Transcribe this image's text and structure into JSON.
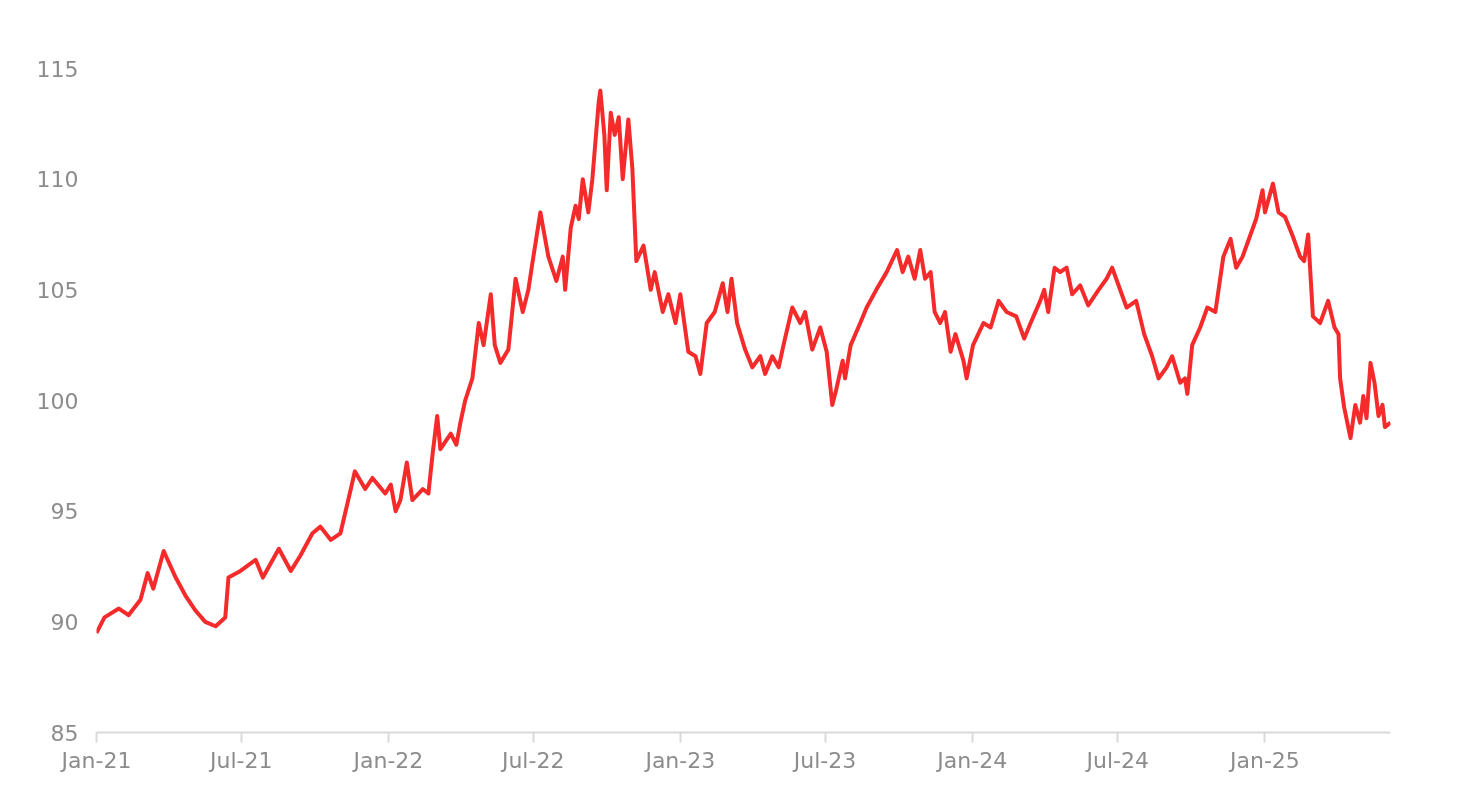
{
  "chart_data": {
    "type": "line",
    "x": [
      "2021-01-01",
      "2021-01-11",
      "2021-01-29",
      "2021-02-10",
      "2021-02-25",
      "2021-03-06",
      "2021-03-13",
      "2021-03-26",
      "2021-04-10",
      "2021-04-22",
      "2021-05-05",
      "2021-05-17",
      "2021-05-30",
      "2021-06-11",
      "2021-06-15",
      "2021-06-30",
      "2021-07-19",
      "2021-07-28",
      "2021-08-17",
      "2021-09-01",
      "2021-09-13",
      "2021-09-28",
      "2021-10-08",
      "2021-10-21",
      "2021-11-02",
      "2021-11-15",
      "2021-11-20",
      "2021-12-03",
      "2021-12-12",
      "2021-12-28",
      "2022-01-04",
      "2022-01-10",
      "2022-01-16",
      "2022-01-24",
      "2022-01-31",
      "2022-02-13",
      "2022-02-20",
      "2022-02-25",
      "2022-03-03",
      "2022-03-07",
      "2022-03-20",
      "2022-03-27",
      "2022-04-01",
      "2022-04-07",
      "2022-04-16",
      "2022-04-24",
      "2022-04-30",
      "2022-05-09",
      "2022-05-14",
      "2022-05-21",
      "2022-05-31",
      "2022-06-09",
      "2022-06-18",
      "2022-06-25",
      "2022-06-30",
      "2022-07-10",
      "2022-07-20",
      "2022-07-30",
      "2022-08-07",
      "2022-08-10",
      "2022-08-17",
      "2022-08-23",
      "2022-08-27",
      "2022-09-01",
      "2022-09-08",
      "2022-09-13",
      "2022-09-21",
      "2022-09-23",
      "2022-09-28",
      "2022-10-01",
      "2022-10-06",
      "2022-10-11",
      "2022-10-16",
      "2022-10-21",
      "2022-10-28",
      "2022-11-02",
      "2022-11-07",
      "2022-11-16",
      "2022-11-25",
      "2022-11-30",
      "2022-12-10",
      "2022-12-17",
      "2022-12-26",
      "2023-01-01",
      "2023-01-11",
      "2023-01-20",
      "2023-01-26",
      "2023-02-03",
      "2023-02-13",
      "2023-02-23",
      "2023-03-01",
      "2023-03-06",
      "2023-03-13",
      "2023-03-23",
      "2023-04-01",
      "2023-04-11",
      "2023-04-17",
      "2023-04-26",
      "2023-05-04",
      "2023-05-10",
      "2023-05-21",
      "2023-05-31",
      "2023-06-06",
      "2023-06-15",
      "2023-06-25",
      "2023-07-03",
      "2023-07-10",
      "2023-07-15",
      "2023-07-23",
      "2023-07-26",
      "2023-08-02",
      "2023-08-14",
      "2023-08-22",
      "2023-09-03",
      "2023-09-16",
      "2023-09-29",
      "2023-10-06",
      "2023-10-13",
      "2023-10-21",
      "2023-10-28",
      "2023-11-03",
      "2023-11-10",
      "2023-11-15",
      "2023-11-22",
      "2023-11-28",
      "2023-12-05",
      "2023-12-11",
      "2023-12-21",
      "2023-12-25",
      "2024-01-02",
      "2024-01-15",
      "2024-01-24",
      "2024-02-03",
      "2024-02-13",
      "2024-02-25",
      "2024-03-06",
      "2024-03-14",
      "2024-03-26",
      "2024-03-31",
      "2024-04-05",
      "2024-04-13",
      "2024-04-20",
      "2024-04-28",
      "2024-05-05",
      "2024-05-15",
      "2024-05-25",
      "2024-06-07",
      "2024-06-17",
      "2024-06-24",
      "2024-06-29",
      "2024-07-12",
      "2024-07-24",
      "2024-08-03",
      "2024-08-13",
      "2024-08-21",
      "2024-08-31",
      "2024-09-07",
      "2024-09-17",
      "2024-09-23",
      "2024-09-26",
      "2024-10-02",
      "2024-10-12",
      "2024-10-21",
      "2024-10-31",
      "2024-11-10",
      "2024-11-19",
      "2024-11-26",
      "2024-12-04",
      "2024-12-14",
      "2024-12-21",
      "2024-12-29",
      "2025-01-01",
      "2025-01-11",
      "2025-01-18",
      "2025-01-26",
      "2025-02-04",
      "2025-02-14",
      "2025-02-19",
      "2025-02-24",
      "2025-03-02",
      "2025-03-11",
      "2025-03-21",
      "2025-03-29",
      "2025-04-03",
      "2025-04-05",
      "2025-04-10",
      "2025-04-18",
      "2025-04-24",
      "2025-04-30",
      "2025-05-04",
      "2025-05-08",
      "2025-05-13",
      "2025-05-18",
      "2025-05-23",
      "2025-05-28",
      "2025-05-31",
      "2025-06-07"
    ],
    "series": [
      {
        "color": "#f52a2a",
        "values": [
          89.5,
          90.2,
          90.6,
          90.3,
          91.0,
          92.2,
          91.5,
          93.2,
          92.0,
          91.2,
          90.5,
          90.0,
          89.8,
          90.2,
          92.0,
          92.3,
          92.8,
          92.0,
          93.3,
          92.3,
          93.0,
          94.0,
          94.3,
          93.7,
          94.0,
          96.0,
          96.8,
          96.0,
          96.5,
          95.8,
          96.2,
          95.0,
          95.5,
          97.2,
          95.5,
          96.0,
          95.8,
          97.5,
          99.3,
          97.8,
          98.5,
          98.0,
          99.0,
          100.0,
          101.0,
          103.5,
          102.5,
          104.8,
          102.5,
          101.7,
          102.3,
          105.5,
          104.0,
          105.0,
          106.2,
          108.5,
          106.5,
          105.4,
          106.5,
          105.0,
          107.8,
          108.8,
          108.2,
          110.0,
          108.5,
          110.0,
          113.5,
          114.0,
          112.0,
          109.5,
          113.0,
          112.0,
          112.8,
          110.0,
          112.7,
          110.5,
          106.3,
          107.0,
          105.0,
          105.8,
          104.0,
          104.8,
          103.5,
          104.8,
          102.2,
          102.0,
          101.2,
          103.5,
          104.0,
          105.3,
          104.0,
          105.5,
          103.5,
          102.3,
          101.5,
          102.0,
          101.2,
          102.0,
          101.5,
          102.5,
          104.2,
          103.5,
          104.0,
          102.3,
          103.3,
          102.2,
          99.8,
          100.5,
          101.8,
          101.0,
          102.5,
          103.5,
          104.2,
          105.0,
          105.8,
          106.8,
          105.8,
          106.5,
          105.5,
          106.8,
          105.5,
          105.8,
          104.0,
          103.5,
          104.0,
          102.2,
          103.0,
          101.8,
          101.0,
          102.5,
          103.5,
          103.3,
          104.5,
          104.0,
          103.8,
          102.8,
          103.5,
          104.5,
          105.0,
          104.0,
          106.0,
          105.8,
          106.0,
          104.8,
          105.2,
          104.3,
          105.0,
          105.5,
          106.0,
          105.5,
          104.2,
          104.5,
          103.0,
          102.0,
          101.0,
          101.5,
          102.0,
          100.8,
          101.0,
          100.3,
          102.5,
          103.3,
          104.2,
          104.0,
          106.5,
          107.3,
          106.0,
          106.5,
          107.5,
          108.2,
          109.5,
          108.5,
          109.8,
          108.5,
          108.3,
          107.5,
          106.5,
          106.3,
          107.5,
          103.8,
          103.5,
          104.5,
          103.3,
          103.0,
          101.0,
          99.7,
          98.3,
          99.8,
          99.0,
          100.2,
          99.2,
          101.7,
          100.8,
          99.3,
          99.8,
          98.8,
          99.0
        ]
      }
    ],
    "xlim": [
      "2021-01-01",
      "2025-06-07"
    ],
    "xticks": [
      {
        "value": "2021-01-01",
        "label": "Jan-21"
      },
      {
        "value": "2021-07-01",
        "label": "Jul-21"
      },
      {
        "value": "2022-01-01",
        "label": "Jan-22"
      },
      {
        "value": "2022-07-01",
        "label": "Jul-22"
      },
      {
        "value": "2023-01-01",
        "label": "Jan-23"
      },
      {
        "value": "2023-07-01",
        "label": "Jul-23"
      },
      {
        "value": "2024-01-01",
        "label": "Jan-24"
      },
      {
        "value": "2024-07-01",
        "label": "Jul-24"
      },
      {
        "value": "2025-01-01",
        "label": "Jan-25"
      }
    ],
    "ylim": [
      85,
      115
    ],
    "yticks": [
      85,
      90,
      95,
      100,
      105,
      110,
      115
    ],
    "grid": false,
    "line_style": "solid"
  }
}
